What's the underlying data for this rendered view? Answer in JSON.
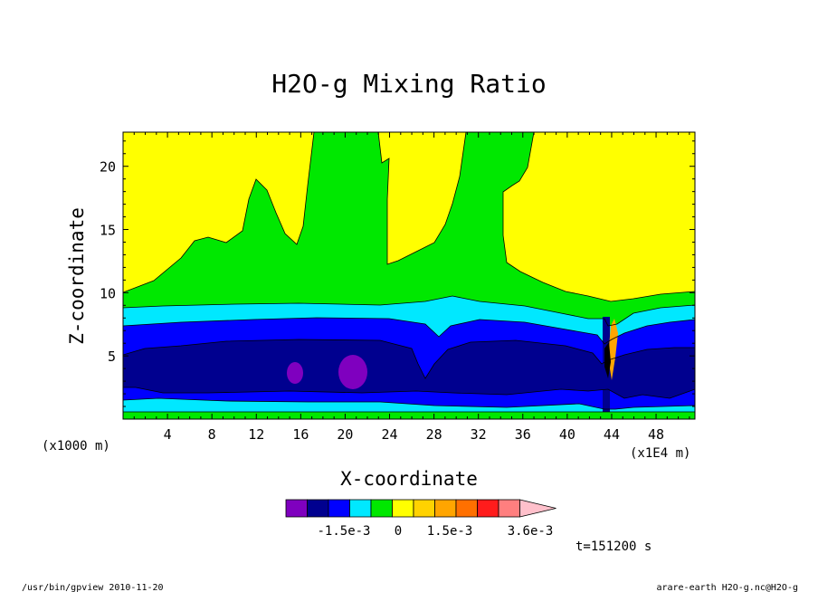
{
  "chart_data": {
    "type": "heatmap",
    "title": "H2O-g Mixing Ratio",
    "xlabel": "X-coordinate",
    "ylabel": "Z-coordinate",
    "x_unit_left": "(x1000 m)",
    "x_unit_right": "(x1E4 m)",
    "xlim": [
      0,
      51.5
    ],
    "ylim": [
      0,
      22.7
    ],
    "x_ticks": [
      4,
      8,
      12,
      16,
      20,
      24,
      28,
      32,
      36,
      40,
      44,
      48
    ],
    "y_ticks": [
      5,
      10,
      15,
      20
    ],
    "colorbar": {
      "colors": [
        "#7f00bf",
        "#00008f",
        "#0000ff",
        "#00e8ff",
        "#00e800",
        "#ffff00",
        "#ffd200",
        "#ffa500",
        "#ff7000",
        "#ff1c1c",
        "#ff7f7f",
        "#ffc0cb"
      ],
      "tick_labels": [
        "-1.5e-3",
        "0",
        "1.5e-3",
        "3.6e-3"
      ]
    },
    "time_label": "t=151200 s",
    "footer_left": "/usr/bin/gpview  2010-11-20",
    "footer_right": "arare-earth_H2O-g.nc@H2O-g"
  }
}
